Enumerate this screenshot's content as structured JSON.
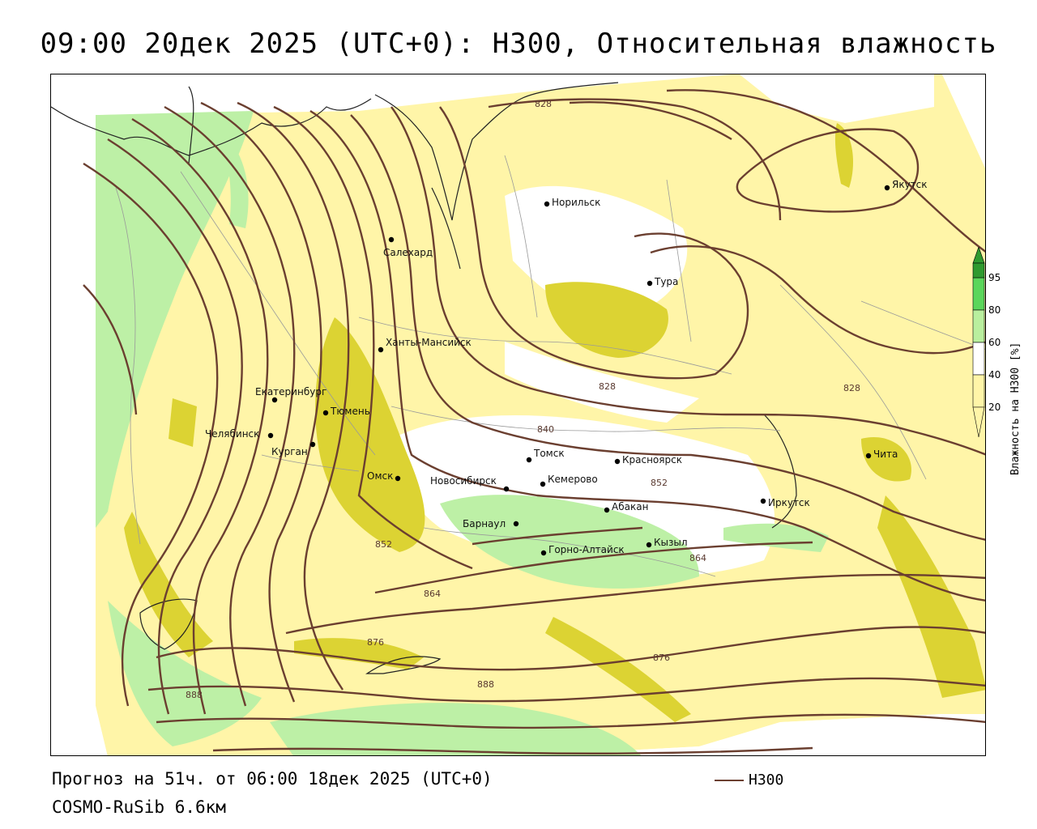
{
  "title": "09:00 20дек 2025 (UTC+0): H300, Относительная влажность",
  "footer": {
    "forecast": "Прогноз на 51ч. от 06:00 18дек 2025 (UTC+0)",
    "model": "COSMO-RuSib 6.6км",
    "contour_legend": "H300"
  },
  "legend": {
    "title": "Влажность на H300 [%]",
    "ticks": [
      "20",
      "40",
      "60",
      "80",
      "95"
    ],
    "colors": {
      "below_20": "#ffffff",
      "20_60": "#fff5a8",
      "60_80": "#d9cf30",
      "80_95": "#b9ef9e",
      "95_100": "#5bd65b",
      "above": "#2f9a2f"
    }
  },
  "colors": {
    "contour": "#6b3f30",
    "moist_light": "#fff5a8",
    "moist_mid": "#dcd333",
    "moist_green": "#bdf0a6"
  },
  "cities": [
    {
      "name": "Норильск"
    },
    {
      "name": "Якутск"
    },
    {
      "name": "Салехард"
    },
    {
      "name": "Тура"
    },
    {
      "name": "Ханты-Мансийск"
    },
    {
      "name": "Екатеринбург"
    },
    {
      "name": "Тюмень"
    },
    {
      "name": "Челябинск"
    },
    {
      "name": "Курган"
    },
    {
      "name": "Омск"
    },
    {
      "name": "Томск"
    },
    {
      "name": "Красноярск"
    },
    {
      "name": "Новосибирск"
    },
    {
      "name": "Кемерово"
    },
    {
      "name": "Барнаул"
    },
    {
      "name": "Абакан"
    },
    {
      "name": "Горно-Алтайск"
    },
    {
      "name": "Кызыл"
    },
    {
      "name": "Иркутск"
    },
    {
      "name": "Чита"
    }
  ],
  "contour_labels": [
    "828",
    "828",
    "828",
    "840",
    "852",
    "852",
    "864",
    "864",
    "876",
    "876",
    "888",
    "888"
  ]
}
